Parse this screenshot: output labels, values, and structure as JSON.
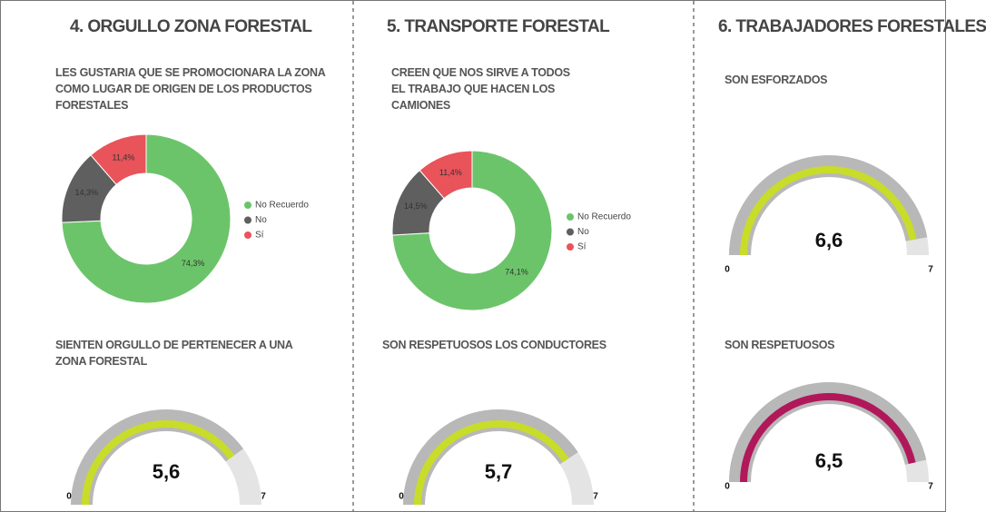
{
  "headers": [
    "4. ORGULLO ZONA FORESTAL",
    "5. TRANSPORTE FORESTAL",
    "6. TRABAJADORES FORESTALES"
  ],
  "chart_data": [
    {
      "type": "donut",
      "title": "LES GUSTARIA QUE SE PROMOCIONARA LA ZONA COMO LUGAR DE ORIGEN DE LOS PRODUCTOS FORESTALES",
      "categories": [
        "No Recuerdo",
        "No",
        "Sí"
      ],
      "values": [
        74.3,
        14.3,
        11.4
      ],
      "value_labels": [
        "74,3%",
        "14,3%",
        "11,4%"
      ],
      "colors": [
        "#6cc46a",
        "#5f5f5f",
        "#e9535a"
      ]
    },
    {
      "type": "gauge",
      "title": "SIENTEN ORGULLO DE PERTENECER A UNA ZONA FORESTAL",
      "value": 5.6,
      "value_label": "5,6",
      "ylim": [
        0,
        7
      ],
      "yticks": [
        0,
        7
      ],
      "color": "#c8dc2a"
    },
    {
      "type": "donut",
      "title": "CREEN QUE NOS SIRVE A TODOS EL TRABAJO QUE HACEN LOS CAMIONES",
      "categories": [
        "No Recuerdo",
        "No",
        "Sí"
      ],
      "values": [
        74.1,
        14.5,
        11.4
      ],
      "value_labels": [
        "74,1%",
        "14,5%",
        "11,4%"
      ],
      "colors": [
        "#6cc46a",
        "#5f5f5f",
        "#e9535a"
      ]
    },
    {
      "type": "gauge",
      "title": "SON RESPETUOSOS LOS CONDUCTORES",
      "value": 5.7,
      "value_label": "5,7",
      "ylim": [
        0,
        7
      ],
      "yticks": [
        0,
        7
      ],
      "color": "#c8dc2a"
    },
    {
      "type": "gauge",
      "title": "SON ESFORZADOS",
      "value": 6.6,
      "value_label": "6,6",
      "ylim": [
        0,
        7
      ],
      "yticks": [
        0,
        7
      ],
      "color": "#c8dc2a"
    },
    {
      "type": "gauge",
      "title": "SON RESPETUOSOS",
      "value": 6.5,
      "value_label": "6,5",
      "ylim": [
        0,
        7
      ],
      "yticks": [
        0,
        7
      ],
      "color": "#b0185a"
    }
  ]
}
